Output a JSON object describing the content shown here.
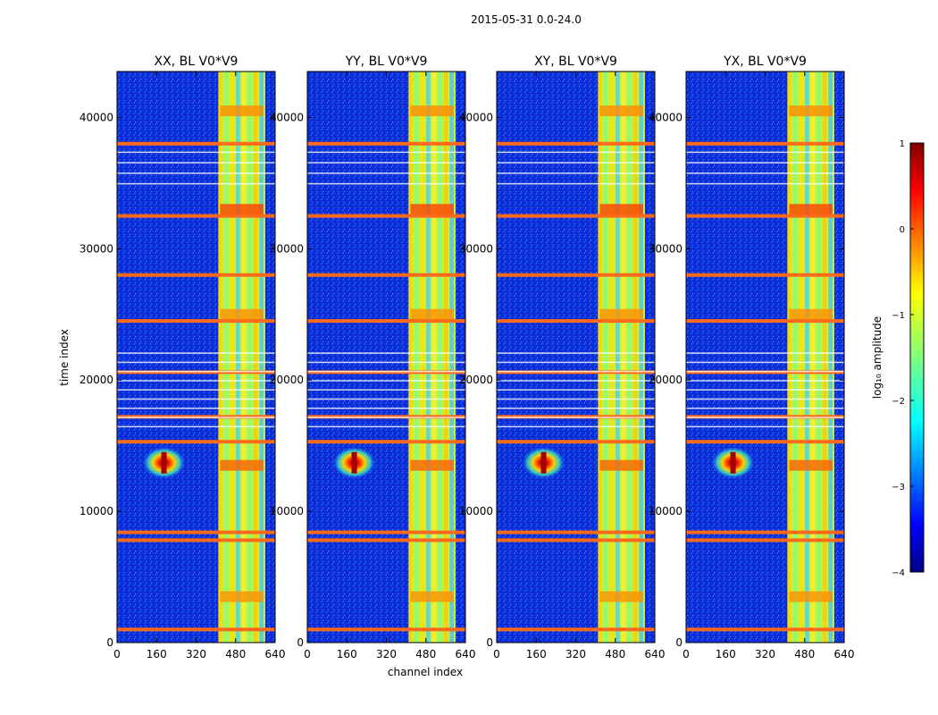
{
  "figure": {
    "suptitle": "2015-05-31 0.0-24.0",
    "xlabel": "channel index",
    "ylabel": "time index",
    "colorbar_label": "log₁₀ amplitude"
  },
  "chart_data": [
    {
      "type": "heatmap",
      "title": "XX, BL V0*V9",
      "xlim": [
        0,
        640
      ],
      "ylim": [
        0,
        43500
      ],
      "xticks": [
        0,
        160,
        320,
        480,
        640
      ],
      "yticks": [
        0,
        10000,
        20000,
        30000,
        40000
      ],
      "colormap": "jet",
      "clim": [
        -4,
        1
      ],
      "hot_channel_band": [
        410,
        600
      ],
      "flagged_time_rows": [
        1000,
        7800,
        8400,
        15300,
        17200,
        20600,
        24500,
        28000,
        32500,
        38000
      ],
      "point_source": {
        "channel": 190,
        "time": 13700
      }
    },
    {
      "type": "heatmap",
      "title": "YY, BL V0*V9",
      "xlim": [
        0,
        640
      ],
      "ylim": [
        0,
        43500
      ],
      "xticks": [
        0,
        160,
        320,
        480,
        640
      ],
      "yticks": [
        0,
        10000,
        20000,
        30000,
        40000
      ],
      "colormap": "jet",
      "clim": [
        -4,
        1
      ],
      "hot_channel_band": [
        410,
        600
      ],
      "flagged_time_rows": [
        1000,
        7800,
        8400,
        15300,
        17200,
        20600,
        24500,
        28000,
        32500,
        38000
      ],
      "point_source": {
        "channel": 190,
        "time": 13700
      }
    },
    {
      "type": "heatmap",
      "title": "XY, BL V0*V9",
      "xlim": [
        0,
        640
      ],
      "ylim": [
        0,
        43500
      ],
      "xticks": [
        0,
        160,
        320,
        480,
        640
      ],
      "yticks": [
        0,
        10000,
        20000,
        30000,
        40000
      ],
      "colormap": "jet",
      "clim": [
        -4,
        1
      ],
      "hot_channel_band": [
        410,
        600
      ],
      "flagged_time_rows": [
        1000,
        7800,
        8400,
        15300,
        17200,
        20600,
        24500,
        28000,
        32500,
        38000
      ],
      "point_source": {
        "channel": 190,
        "time": 13700
      }
    },
    {
      "type": "heatmap",
      "title": "YX, BL V0*V9",
      "xlim": [
        0,
        640
      ],
      "ylim": [
        0,
        43500
      ],
      "xticks": [
        0,
        160,
        320,
        480,
        640
      ],
      "yticks": [
        0,
        10000,
        20000,
        30000,
        40000
      ],
      "colormap": "jet",
      "clim": [
        -4,
        1
      ],
      "hot_channel_band": [
        410,
        600
      ],
      "flagged_time_rows": [
        1000,
        7800,
        8400,
        15300,
        17200,
        20600,
        24500,
        28000,
        32500,
        38000
      ],
      "point_source": {
        "channel": 190,
        "time": 13700
      }
    }
  ],
  "colorbar": {
    "range": [
      -4,
      1
    ],
    "ticks": [
      1,
      0,
      -1,
      -2,
      -3,
      -4
    ],
    "tick_labels": [
      "1",
      "0",
      "−1",
      "−2",
      "−3",
      "−4"
    ]
  }
}
